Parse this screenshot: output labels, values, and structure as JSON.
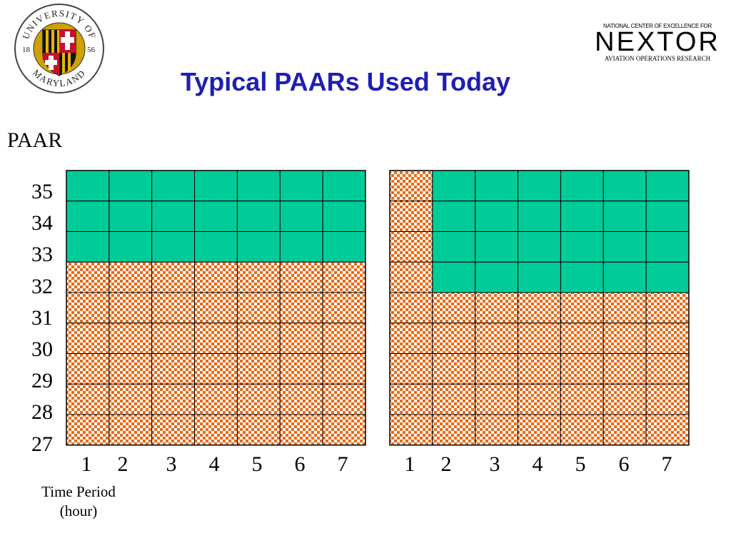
{
  "header": {
    "title": "Typical PAARs Used Today",
    "umd_logo": {
      "text_top": "UNIVERSITY OF",
      "text_bottom": "MARYLAND",
      "year_left": "18",
      "year_right": "56"
    },
    "nextor_logo": {
      "top_line": "NATIONAL CENTER OF EXCELLENCE FOR",
      "main": "NEXTOR",
      "bottom_line": "AVIATION OPERATIONS RESEARCH"
    }
  },
  "axes": {
    "y_title": "PAAR",
    "y_ticks": [
      "35",
      "34",
      "33",
      "32",
      "31",
      "30",
      "29",
      "28",
      "27"
    ],
    "x_ticks": [
      "1",
      "2",
      "3",
      "4",
      "5",
      "6",
      "7"
    ],
    "x_title_line1": "Time Period",
    "x_title_line2": "(hour)"
  },
  "colors": {
    "green": "#00cc99",
    "orange": "#e96a16",
    "title_blue": "#1f1fb4"
  },
  "chart_data": [
    {
      "type": "heatmap",
      "x": [
        1,
        2,
        3,
        4,
        5,
        6,
        7
      ],
      "levels": [
        35,
        34,
        33,
        32,
        31,
        30,
        29,
        28,
        27
      ],
      "orange_top": [
        32,
        32,
        32,
        32,
        32,
        32,
        32
      ]
    },
    {
      "type": "heatmap",
      "x": [
        1,
        2,
        3,
        4,
        5,
        6,
        7
      ],
      "levels": [
        35,
        34,
        33,
        32,
        31,
        30,
        29,
        28,
        27
      ],
      "orange_top": [
        35,
        31,
        31,
        31,
        31,
        31,
        31
      ]
    }
  ]
}
